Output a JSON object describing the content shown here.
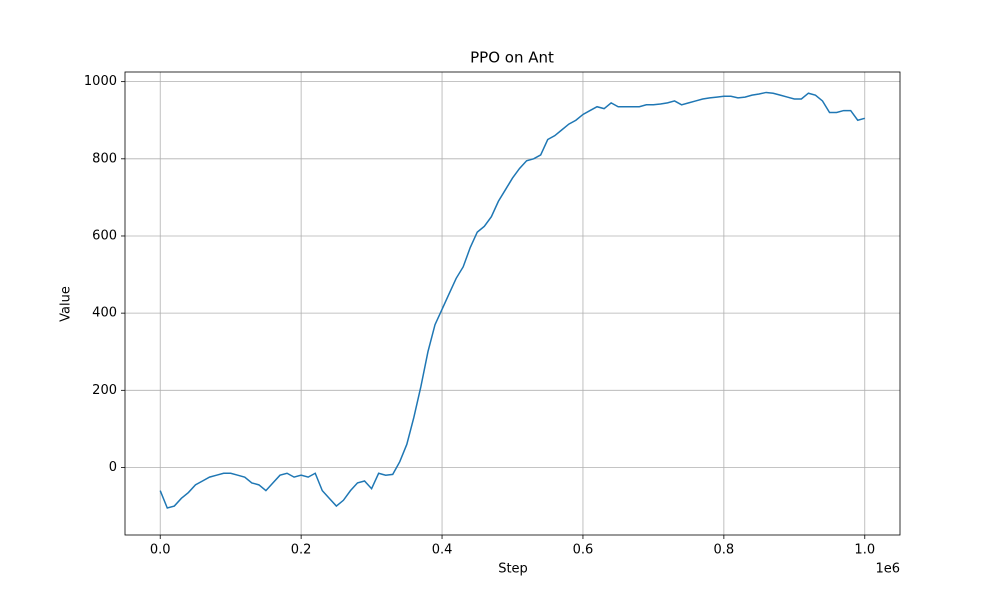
{
  "chart_data": {
    "type": "line",
    "title": "PPO on Ant",
    "x_label": "Step",
    "y_label": "Value",
    "x_offset_label": "1e6",
    "x": [
      0,
      10000,
      20000,
      30000,
      40000,
      50000,
      60000,
      70000,
      80000,
      90000,
      100000,
      110000,
      120000,
      130000,
      140000,
      150000,
      160000,
      170000,
      180000,
      190000,
      200000,
      210000,
      220000,
      230000,
      240000,
      250000,
      260000,
      270000,
      280000,
      290000,
      300000,
      310000,
      320000,
      330000,
      340000,
      350000,
      360000,
      370000,
      380000,
      390000,
      400000,
      410000,
      420000,
      430000,
      440000,
      450000,
      460000,
      470000,
      480000,
      490000,
      500000,
      510000,
      520000,
      530000,
      540000,
      550000,
      560000,
      570000,
      580000,
      590000,
      600000,
      610000,
      620000,
      630000,
      640000,
      650000,
      660000,
      670000,
      680000,
      690000,
      700000,
      710000,
      720000,
      730000,
      740000,
      750000,
      760000,
      770000,
      780000,
      790000,
      800000,
      810000,
      820000,
      830000,
      840000,
      850000,
      860000,
      870000,
      880000,
      890000,
      900000,
      910000,
      920000,
      930000,
      940000,
      950000,
      960000,
      970000,
      980000,
      990000,
      1000000
    ],
    "series": [
      {
        "name": "Value",
        "color": "#1f77b4",
        "values": [
          -60,
          -105,
          -100,
          -80,
          -65,
          -45,
          -35,
          -25,
          -20,
          -15,
          -15,
          -20,
          -25,
          -40,
          -45,
          -60,
          -40,
          -20,
          -15,
          -25,
          -20,
          -25,
          -15,
          -60,
          -80,
          -100,
          -85,
          -60,
          -40,
          -35,
          -55,
          -15,
          -20,
          -18,
          15,
          60,
          130,
          210,
          300,
          370,
          410,
          450,
          490,
          520,
          570,
          610,
          625,
          650,
          690,
          720,
          750,
          775,
          795,
          800,
          810,
          850,
          860,
          875,
          890,
          900,
          915,
          925,
          935,
          930,
          945,
          935,
          935,
          935,
          935,
          940,
          940,
          942,
          945,
          950,
          940,
          945,
          950,
          955,
          958,
          960,
          962,
          962,
          958,
          960,
          965,
          968,
          972,
          970,
          965,
          960,
          955,
          955,
          970,
          965,
          950,
          920,
          920,
          925,
          925,
          900,
          905
        ]
      }
    ],
    "xlim": [
      -50000,
      1050000
    ],
    "xticks": [
      {
        "value": 0,
        "label": "0.0"
      },
      {
        "value": 200000,
        "label": "0.2"
      },
      {
        "value": 400000,
        "label": "0.4"
      },
      {
        "value": 600000,
        "label": "0.6"
      },
      {
        "value": 800000,
        "label": "0.8"
      },
      {
        "value": 1000000,
        "label": "1.0"
      }
    ],
    "ylim": [
      -175,
      1025
    ],
    "yticks": [
      0,
      200,
      400,
      600,
      800,
      1000
    ],
    "grid": true
  }
}
